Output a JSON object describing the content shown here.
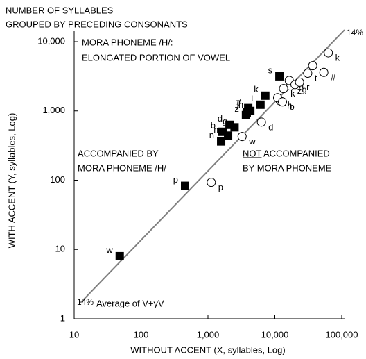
{
  "chart_data": {
    "type": "scatter",
    "title": [
      "NUMBER OF SYLLABLES",
      "GROUPED BY PRECEDING CONSONANTS"
    ],
    "xlabel": "WITHOUT ACCENT (X, syllables, Log)",
    "ylabel": "WITH ACCENT (Y, syllables, Log)",
    "xscale": "log",
    "yscale": "log",
    "xlim": [
      10,
      100000
    ],
    "ylim": [
      1,
      10000
    ],
    "xticks": [
      10,
      100,
      {
        "value": 1000,
        "label": "1,000"
      },
      {
        "value": 10000,
        "label": "10,000"
      },
      {
        "value": 100000,
        "label": "100,000"
      }
    ],
    "yticks": [
      1,
      10,
      100,
      {
        "value": 1000,
        "label": "1,000"
      },
      {
        "value": 10000,
        "label": "10,000"
      }
    ],
    "legend_note": [
      "MORA PHONEME /H/:",
      "ELONGATED PORTION OF VOWEL"
    ],
    "series": [
      {
        "name": [
          "ACCOMPANIED BY",
          "MORA PHONEME /H/"
        ],
        "marker": "square",
        "color": "#000000",
        "labels": [
          "w",
          "p",
          "n",
          "b",
          "m",
          "d",
          "g",
          "z",
          "r",
          "h",
          "#",
          "t",
          "s",
          "k"
        ],
        "x": [
          48,
          455,
          1575,
          1650,
          2000,
          2100,
          2500,
          3700,
          3800,
          4300,
          4000,
          6100,
          11700,
          7200
        ],
        "values": [
          8,
          83,
          363,
          500,
          440,
          630,
          580,
          870,
          950,
          1000,
          1100,
          1230,
          3160,
          1660
        ]
      },
      {
        "name": [
          "NOT",
          " ACCOMPANIED",
          "BY MORA PHONEME"
        ],
        "marker": "circle",
        "color": "#000000",
        "labels": [
          "p",
          "w",
          "d",
          "n",
          "h",
          "b",
          "z",
          "k",
          "m",
          "g",
          "r",
          "t",
          "s",
          "#",
          "k"
        ],
        "x": [
          1120,
          3240,
          6300,
          12000,
          11000,
          13000,
          17000,
          13500,
          16400,
          20000,
          23400,
          31000,
          36800,
          54000,
          63000
        ],
        "values": [
          93,
          427,
          690,
          1400,
          1550,
          1350,
          2300,
          2100,
          2750,
          2400,
          2600,
          3500,
          4500,
          3600,
          6900
        ]
      }
    ],
    "reference_line": {
      "label": "Average of V+yV",
      "end_label": "14%",
      "color": "#808080",
      "x": [
        12.4,
        110000
      ],
      "y": [
        1.7,
        14800
      ]
    }
  }
}
